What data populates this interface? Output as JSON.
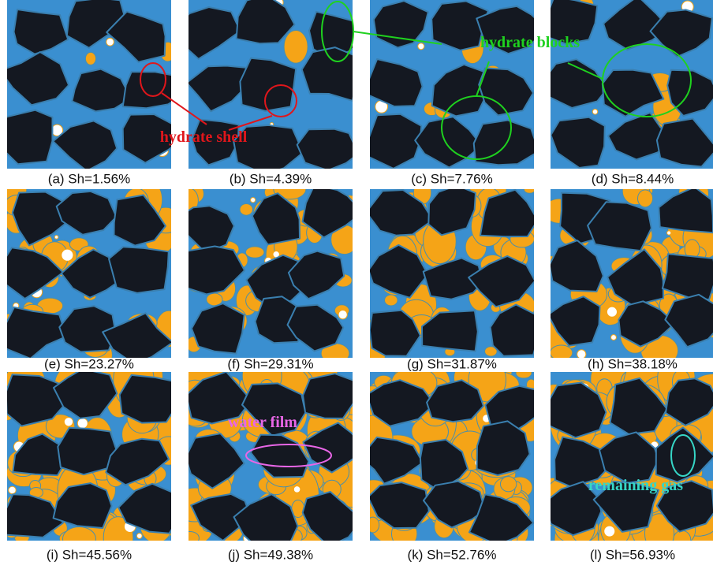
{
  "panels": [
    {
      "caption": "(a) Sh=1.56%"
    },
    {
      "caption": "(b) Sh=4.39%"
    },
    {
      "caption": "(c) Sh=7.76%"
    },
    {
      "caption": "(d) Sh=8.44%"
    },
    {
      "caption": "(e) Sh=23.27%"
    },
    {
      "caption": "(f) Sh=29.31%"
    },
    {
      "caption": "(g) Sh=31.87%"
    },
    {
      "caption": "(h) Sh=38.18%"
    },
    {
      "caption": "(i) Sh=45.56%"
    },
    {
      "caption": "(j) Sh=49.38%"
    },
    {
      "caption": "(k) Sh=52.76%"
    },
    {
      "caption": "(l) Sh=56.93%"
    }
  ],
  "annotations": [
    {
      "text": "hydrate shell"
    },
    {
      "text": "hydrate blocks"
    },
    {
      "text": "water film"
    },
    {
      "text": "remaining gas"
    }
  ]
}
